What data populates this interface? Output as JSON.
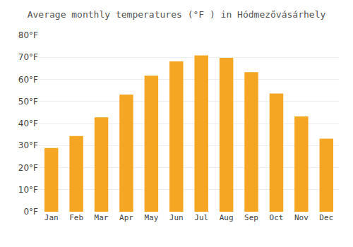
{
  "chart_data": {
    "type": "bar",
    "title": "Average monthly temperatures (°F ) in Hódmezővásárhely",
    "categories": [
      "Jan",
      "Feb",
      "Mar",
      "Apr",
      "May",
      "Jun",
      "Jul",
      "Aug",
      "Sep",
      "Oct",
      "Nov",
      "Dec"
    ],
    "values": [
      28.9,
      34.3,
      42.8,
      53.1,
      61.7,
      68.2,
      70.9,
      69.8,
      63.3,
      53.6,
      43.2,
      33.1
    ],
    "color": "#F5A623",
    "ylim": [
      0,
      80
    ],
    "yticks": [
      {
        "value": 0,
        "label": "0°F"
      },
      {
        "value": 10,
        "label": "10°F"
      },
      {
        "value": 20,
        "label": "20°F"
      },
      {
        "value": 30,
        "label": "30°F"
      },
      {
        "value": 40,
        "label": "40°F"
      },
      {
        "value": 50,
        "label": "50°F"
      },
      {
        "value": 60,
        "label": "60°F"
      },
      {
        "value": 70,
        "label": "70°F"
      },
      {
        "value": 80,
        "label": "80°F"
      }
    ],
    "grid": true
  }
}
